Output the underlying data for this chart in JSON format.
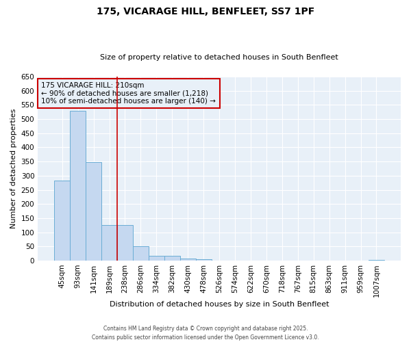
{
  "title": "175, VICARAGE HILL, BENFLEET, SS7 1PF",
  "subtitle": "Size of property relative to detached houses in South Benfleet",
  "xlabel": "Distribution of detached houses by size in South Benfleet",
  "ylabel": "Number of detached properties",
  "categories": [
    "45sqm",
    "93sqm",
    "141sqm",
    "189sqm",
    "238sqm",
    "286sqm",
    "334sqm",
    "382sqm",
    "430sqm",
    "478sqm",
    "526sqm",
    "574sqm",
    "622sqm",
    "670sqm",
    "718sqm",
    "767sqm",
    "815sqm",
    "863sqm",
    "911sqm",
    "959sqm",
    "1007sqm"
  ],
  "values": [
    283,
    530,
    348,
    125,
    125,
    50,
    18,
    18,
    8,
    5,
    0,
    0,
    0,
    0,
    0,
    0,
    0,
    0,
    0,
    0,
    3
  ],
  "bar_color": "#c5d8f0",
  "bar_edge_color": "#6aadd5",
  "vline_x": 3.5,
  "vline_color": "#cc0000",
  "annotation_text": "175 VICARAGE HILL: 210sqm\n← 90% of detached houses are smaller (1,218)\n10% of semi-detached houses are larger (140) →",
  "annotation_box_color": "#cc0000",
  "annotation_text_color": "#000000",
  "ylim": [
    0,
    650
  ],
  "yticks": [
    0,
    50,
    100,
    150,
    200,
    250,
    300,
    350,
    400,
    450,
    500,
    550,
    600,
    650
  ],
  "bg_color": "#ffffff",
  "plot_bg_color": "#e8f0f8",
  "grid_color": "#ffffff",
  "footer": "Contains HM Land Registry data © Crown copyright and database right 2025.\nContains public sector information licensed under the Open Government Licence v3.0."
}
